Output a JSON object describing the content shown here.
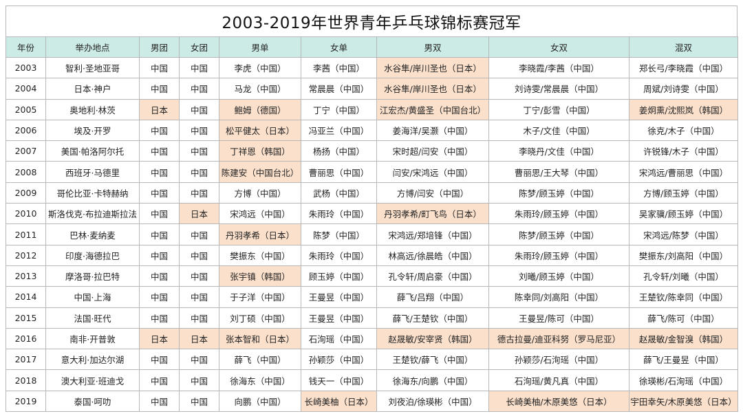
{
  "title": "2003-2019年世界青年乒乓球锦标赛冠军",
  "headers": [
    "年份",
    "举办地点",
    "男团",
    "女团",
    "男单",
    "女单",
    "男双",
    "女双",
    "混双"
  ],
  "highlight_color": "#fbe0cc",
  "header_color": "#cdebe6",
  "rows": [
    {
      "cells": [
        "2003",
        "智利·圣地亚哥",
        "中国",
        "中国",
        "李虎（中国）",
        "李茜（中国）",
        "水谷隼/岸川圣也（日本）",
        "李晓霞/李茜（中国）",
        "郑长弓/李晓霞（中国）"
      ],
      "hl": [
        6
      ]
    },
    {
      "cells": [
        "2004",
        "日本·神户",
        "中国",
        "中国",
        "马龙（中国）",
        "常晨晨（中国）",
        "水谷隼/岸川圣也（日本）",
        "刘诗雯/常晨晨（中国）",
        "周斌/刘诗雯（中国）"
      ],
      "hl": [
        6
      ]
    },
    {
      "cells": [
        "2005",
        "奥地利·林茨",
        "日本",
        "中国",
        "鲍姆（德国）",
        "丁宁（中国）",
        "江宏杰/黄盛圣（中国台北）",
        "丁宁/彭雪（中国）",
        "姜炯熏/沈熙岚（韩国）"
      ],
      "hl": [
        2,
        4,
        6,
        8
      ]
    },
    {
      "cells": [
        "2006",
        "埃及·开罗",
        "中国",
        "中国",
        "松平健太（日本）",
        "冯亚兰（中国）",
        "姜海洋/吴灏（中国）",
        "木子/文佳（中国）",
        "徐克/木子（中国）"
      ],
      "hl": [
        4
      ]
    },
    {
      "cells": [
        "2007",
        "美国·帕洛阿尔托",
        "中国",
        "中国",
        "丁祥恩（韩国）",
        "杨扬（中国）",
        "宋时超/闫安（中国）",
        "李晓丹/文佳（中国）",
        "许锐锋/木子（中国）"
      ],
      "hl": [
        4
      ]
    },
    {
      "cells": [
        "2008",
        "西班牙·马德里",
        "中国",
        "中国",
        "陈建安（中国台北）",
        "曹丽思（中国）",
        "闫安/宋鸿远（中国）",
        "曹丽思/王大琴（中国）",
        "宋鸿远/曹丽思（中国）"
      ],
      "hl": [
        4
      ]
    },
    {
      "cells": [
        "2009",
        "哥伦比亚·卡特赫纳",
        "中国",
        "中国",
        "方博（中国）",
        "武杨（中国）",
        "方博/闫安（中国）",
        "陈梦/顾玉婷（中国）",
        "方博/顾玉婷（中国）"
      ],
      "hl": []
    },
    {
      "cells": [
        "2010",
        "斯洛伐克·布拉迪斯拉法",
        "中国",
        "日本",
        "宋鸿远（中国）",
        "朱雨玲（中国）",
        "丹羽孝希/町飞鸟（日本）",
        "朱雨玲/顾玉婷（中国）",
        "吴家骥/顾玉婷（中国）"
      ],
      "hl": [
        3,
        6
      ]
    },
    {
      "cells": [
        "2011",
        "巴林·麦纳麦",
        "中国",
        "中国",
        "丹羽孝希（日本）",
        "陈梦（中国）",
        "宋鸿远/郑培锋（中国）",
        "陈梦/顾玉婷（中国）",
        "宋鸿远/陈梦（中国）"
      ],
      "hl": [
        4
      ]
    },
    {
      "cells": [
        "2012",
        "印度·海德拉巴",
        "中国",
        "中国",
        "樊振东（中国）",
        "朱雨玲（中国）",
        "林高远/徐晨皓（中国）",
        "朱雨玲/顾玉婷（中国）",
        "樊振东/刘高阳（中国）"
      ],
      "hl": []
    },
    {
      "cells": [
        "2013",
        "摩洛哥·拉巴特",
        "中国",
        "中国",
        "张宇镇（韩国）",
        "顾玉婷（中国）",
        "孔令轩/周启豪（中国）",
        "刘曦/顾玉婷（中国）",
        "孔令轩/刘曦（中国）"
      ],
      "hl": [
        4
      ]
    },
    {
      "cells": [
        "2014",
        "中国·上海",
        "中国",
        "中国",
        "于子洋（中国）",
        "王曼昱（中国）",
        "薛飞/吕翔（中国）",
        "陈幸同/刘高阳（中国）",
        "王楚钦/陈幸同（中国）"
      ],
      "hl": []
    },
    {
      "cells": [
        "2015",
        "法国·旺代",
        "中国",
        "中国",
        "刘丁硕（中国）",
        "王曼昱（中国）",
        "薛飞/王楚钦（中国）",
        "王曼昱/陈可（中国）",
        "薛飞/陈可（中国）"
      ],
      "hl": []
    },
    {
      "cells": [
        "2016",
        "南非·开普敦",
        "日本",
        "日本",
        "张本智和（日本）",
        "石洵瑶（中国）",
        "赵晟敏/安宰贤（韩国）",
        "德古拉曼/迪亚科努（罗马尼亚）",
        "赵晟敏/金智溴（韩国）"
      ],
      "hl": [
        2,
        3,
        4,
        6,
        7,
        8
      ]
    },
    {
      "cells": [
        "2017",
        "意大利·加达尔湖",
        "中国",
        "中国",
        "薛飞（中国）",
        "孙颖莎（中国）",
        "王楚钦/薛飞（中国）",
        "孙颖莎/石洵瑶（中国）",
        "薛飞/王曼昱（中国）"
      ],
      "hl": []
    },
    {
      "cells": [
        "2018",
        "澳大利亚·班迪戈",
        "中国",
        "中国",
        "徐海东（中国）",
        "钱天一（中国）",
        "徐海东/向鹏（中国）",
        "石洵瑶/黄凡真（中国）",
        "徐瑛彬/石洵瑶（中国）"
      ],
      "hl": []
    },
    {
      "cells": [
        "2019",
        "泰国·呵叻",
        "中国",
        "中国",
        "向鹏（中国）",
        "长崎美柚（日本）",
        "刘夜泊/徐瑛彬（中国）",
        "长崎美柚/木原美悠（日本）",
        "宇田幸矢/木原美悠（日本）"
      ],
      "hl": [
        5,
        7,
        8
      ]
    }
  ]
}
